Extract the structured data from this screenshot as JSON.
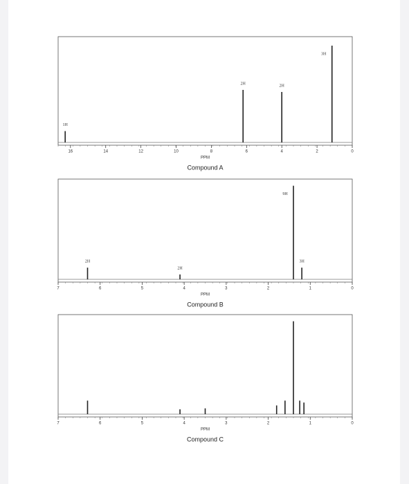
{
  "chart_data": [
    {
      "type": "stick",
      "xlabel": "PPM",
      "caption": "Compound A",
      "xlim": [
        16.7,
        0
      ],
      "xticks": [
        16,
        14,
        12,
        10,
        8,
        6,
        4,
        2,
        0
      ],
      "ylim": [
        0,
        100
      ],
      "x": [
        16.3,
        6.2,
        4.0,
        1.15
      ],
      "values": [
        11,
        51,
        49,
        94
      ],
      "labels": [
        "1H",
        "2H",
        "2H",
        "3H"
      ]
    },
    {
      "type": "stick",
      "xlabel": "PPM",
      "caption": "Compound B",
      "xlim": [
        7,
        0
      ],
      "xticks": [
        7,
        6,
        5,
        4,
        3,
        2,
        1,
        0
      ],
      "ylim": [
        0,
        100
      ],
      "x": [
        6.3,
        4.1,
        1.4,
        1.2
      ],
      "values": [
        12,
        5,
        96,
        12
      ],
      "labels": [
        "2H",
        "2H",
        "9H",
        "3H"
      ]
    },
    {
      "type": "stick",
      "xlabel": "PPM",
      "caption": "Compound C",
      "xlim": [
        7,
        0
      ],
      "xticks": [
        7,
        6,
        5,
        4,
        3,
        2,
        1,
        0
      ],
      "ylim": [
        0,
        100
      ],
      "x": [
        6.3,
        4.1,
        3.5,
        1.8,
        1.6,
        1.4,
        1.25,
        1.15
      ],
      "values": [
        14,
        5,
        6,
        9,
        14,
        96,
        14,
        12
      ]
    }
  ]
}
